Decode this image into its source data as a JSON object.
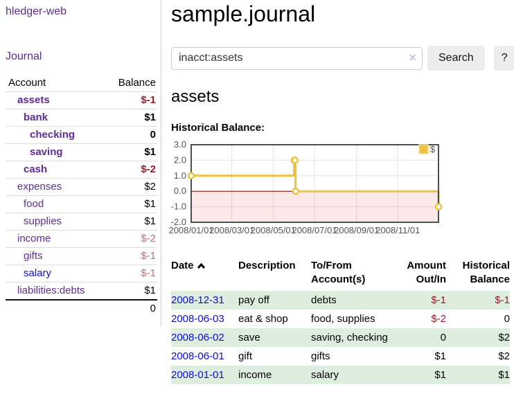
{
  "app": {
    "title": "hledger-web",
    "nav": {
      "journal": "Journal"
    }
  },
  "colors": {
    "link_purple": "#5e2b97",
    "link_blue": "#0b0bdd",
    "negative_strong": "#a01826",
    "negative_soft": "#c26f7a",
    "row_stripe_green": "#deeede",
    "chart_line": "#EDC240",
    "chart_zero_line": "#800000",
    "chart_negative_fill": "rgba(255,0,0,0.09)"
  },
  "sidebar": {
    "accounts_table": {
      "header": {
        "account": "Account",
        "balance": "Balance"
      },
      "rows": [
        {
          "name": "assets",
          "balance": "$-1",
          "indent": 1,
          "bold": true,
          "neg": "strong",
          "link": "purple"
        },
        {
          "name": "bank",
          "balance": "$1",
          "indent": 2,
          "bold": true,
          "neg": "",
          "link": "purple"
        },
        {
          "name": "checking",
          "balance": "0",
          "indent": 3,
          "bold": true,
          "neg": "",
          "link": "purple"
        },
        {
          "name": "saving",
          "balance": "$1",
          "indent": 3,
          "bold": true,
          "neg": "",
          "link": "purple"
        },
        {
          "name": "cash",
          "balance": "$-2",
          "indent": 2,
          "bold": true,
          "neg": "strong",
          "link": "purple"
        },
        {
          "name": "expenses",
          "balance": "$2",
          "indent": 1,
          "bold": false,
          "neg": "",
          "link": "purple"
        },
        {
          "name": "food",
          "balance": "$1",
          "indent": 2,
          "bold": false,
          "neg": "",
          "link": "purple"
        },
        {
          "name": "supplies",
          "balance": "$1",
          "indent": 2,
          "bold": false,
          "neg": "",
          "link": "purple"
        },
        {
          "name": "income",
          "balance": "$-2",
          "indent": 1,
          "bold": false,
          "neg": "soft",
          "link": "purple"
        },
        {
          "name": "gifts",
          "balance": "$-1",
          "indent": 2,
          "bold": false,
          "neg": "soft",
          "link": "purple"
        },
        {
          "name": "salary",
          "balance": "$-1",
          "indent": 2,
          "bold": false,
          "neg": "soft",
          "link": "blue"
        },
        {
          "name": "liabilities:debts",
          "balance": "$1",
          "indent": 1,
          "bold": false,
          "neg": "",
          "link": "purple"
        }
      ],
      "total": "0"
    }
  },
  "main": {
    "title": "sample.journal",
    "search": {
      "value": "inacct:assets",
      "clear_icon": "×",
      "search_button": "Search",
      "help_button": "?"
    },
    "account_heading": "assets",
    "chart_title": "Historical Balance:"
  },
  "chart_data": {
    "type": "line",
    "title": "Historical Balance",
    "step": true,
    "series": [
      {
        "name": "$",
        "color": "#EDC240",
        "points": [
          [
            "2008-01-01",
            1
          ],
          [
            "2008-06-01",
            2
          ],
          [
            "2008-06-02",
            2
          ],
          [
            "2008-06-03",
            0
          ],
          [
            "2008-12-31",
            -1
          ]
        ]
      }
    ],
    "xlim": [
      "2008-01-01",
      "2008-12-31"
    ],
    "ylim": [
      -2,
      3
    ],
    "yticks": [
      3.0,
      2.0,
      1.0,
      0.0,
      -1.0,
      -2.0
    ],
    "xticks": [
      "2008/01/01",
      "2008/03/01",
      "2008/05/01",
      "2008/07/01",
      "2008/09/01",
      "2008/11/01"
    ],
    "grid": true,
    "legend_position": "top-right",
    "legend": [
      "$"
    ]
  },
  "register": {
    "headers": {
      "date": "Date",
      "description": "Description",
      "accounts": "To/From Account(s)",
      "amount": "Amount Out/In",
      "balance": "Historical Balance"
    },
    "rows": [
      {
        "date": "2008-12-31",
        "description": "pay off",
        "accounts": "debts",
        "amount": "$-1",
        "amount_neg": true,
        "balance": "$-1",
        "balance_neg": true
      },
      {
        "date": "2008-06-03",
        "description": "eat & shop",
        "accounts": "food, supplies",
        "amount": "$-2",
        "amount_neg": true,
        "balance": "0",
        "balance_neg": false
      },
      {
        "date": "2008-06-02",
        "description": "save",
        "accounts": "saving, checking",
        "amount": "0",
        "amount_neg": false,
        "balance": "$2",
        "balance_neg": false
      },
      {
        "date": "2008-06-01",
        "description": "gift",
        "accounts": "gifts",
        "amount": "$1",
        "amount_neg": false,
        "balance": "$2",
        "balance_neg": false
      },
      {
        "date": "2008-01-01",
        "description": "income",
        "accounts": "salary",
        "amount": "$1",
        "amount_neg": false,
        "balance": "$1",
        "balance_neg": false
      }
    ]
  }
}
